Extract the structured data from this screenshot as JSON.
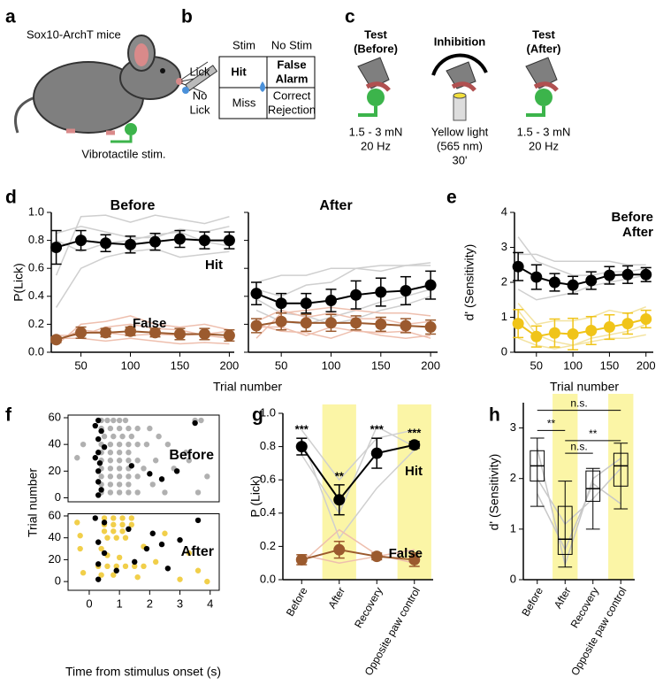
{
  "panel_labels": [
    "a",
    "b",
    "c",
    "d",
    "e",
    "f",
    "g",
    "h"
  ],
  "panel_a": {
    "title": "Sox10-ArchT mice",
    "caption": "Vibrotactile stim."
  },
  "panel_b": {
    "columns": [
      "Stim",
      "No Stim"
    ],
    "rows": [
      {
        "label": [
          "Lick"
        ],
        "cells": [
          [
            "Hit"
          ],
          [
            "False",
            "Alarm"
          ]
        ]
      },
      {
        "label": [
          "No",
          "Lick"
        ],
        "cells": [
          [
            "Miss"
          ],
          [
            "Correct",
            "Rejection"
          ]
        ]
      }
    ]
  },
  "panel_c": {
    "steps": [
      {
        "title": [
          "Test",
          "(Before)"
        ],
        "desc": [
          "1.5 - 3 mN",
          "20 Hz"
        ]
      },
      {
        "title": [
          "Inhibition"
        ],
        "desc": [
          "Yellow light",
          "(565 nm)",
          "30'"
        ]
      },
      {
        "title": [
          "Test",
          "(After)"
        ],
        "desc": [
          "1.5 - 3 mN",
          "20 Hz"
        ]
      }
    ]
  },
  "chart_data": [
    {
      "type": "line",
      "title": "Before",
      "ylabel": "P(Lick)",
      "x": [
        25,
        50,
        75,
        100,
        125,
        150,
        175,
        200
      ],
      "xlim": [
        20,
        205
      ],
      "xticks": [
        50,
        100,
        150,
        200
      ],
      "ylim": [
        0,
        1
      ],
      "yticks": [
        {
          "value": 0,
          "label": "0.0"
        },
        0.2,
        0.4,
        0.6,
        0.8,
        {
          "value": 1,
          "label": "1.0"
        }
      ],
      "traces": [
        {
          "color": "#cfcfcf",
          "values": [
            0.55,
            0.97,
            0.98,
            0.93,
            0.98,
            0.95,
            0.92,
            0.97
          ]
        },
        {
          "color": "#cfcfcf",
          "values": [
            0.32,
            0.6,
            0.68,
            0.72,
            0.74,
            0.68,
            0.7,
            0.72
          ]
        },
        {
          "color": "#cfcfcf",
          "values": [
            0.85,
            0.9,
            0.86,
            0.82,
            0.82,
            0.88,
            0.86,
            0.9
          ]
        },
        {
          "color": "#cfcfcf",
          "values": [
            0.8,
            0.72,
            0.78,
            0.8,
            0.84,
            0.86,
            0.79,
            0.76
          ]
        },
        {
          "color": "#eebfae",
          "values": [
            0.05,
            0.2,
            0.22,
            0.26,
            0.2,
            0.18,
            0.2,
            0.16
          ]
        },
        {
          "color": "#eebfae",
          "values": [
            0.1,
            0.1,
            0.08,
            0.1,
            0.08,
            0.06,
            0.07,
            0.06
          ]
        },
        {
          "color": "#eebfae",
          "values": [
            0.08,
            0.16,
            0.14,
            0.12,
            0.13,
            0.12,
            0.13,
            0.15
          ]
        },
        {
          "color": "#eebfae",
          "values": [
            0.12,
            0.12,
            0.18,
            0.2,
            0.17,
            0.16,
            0.12,
            0.1
          ]
        }
      ],
      "series": [
        {
          "name": "Hit",
          "color": "#000000",
          "values": [
            0.75,
            0.8,
            0.78,
            0.77,
            0.79,
            0.81,
            0.8,
            0.8
          ],
          "errors": [
            0.12,
            0.07,
            0.06,
            0.06,
            0.06,
            0.06,
            0.06,
            0.06
          ]
        },
        {
          "name": "False",
          "color": "#9b5a2e",
          "values": [
            0.09,
            0.14,
            0.14,
            0.15,
            0.14,
            0.13,
            0.13,
            0.12
          ],
          "errors": [
            0.02,
            0.04,
            0.03,
            0.03,
            0.03,
            0.04,
            0.04,
            0.04
          ]
        }
      ]
    },
    {
      "type": "line",
      "title": "After",
      "xlabel": "Trial number",
      "x": [
        25,
        50,
        75,
        100,
        125,
        150,
        175,
        200
      ],
      "xlim": [
        17,
        207
      ],
      "xticks": [
        50,
        100,
        150,
        200
      ],
      "ylim": [
        0,
        1
      ],
      "yticks": [
        0,
        0.2,
        0.4,
        0.6,
        0.8,
        1
      ],
      "ytick_labels": false,
      "traces": [
        {
          "color": "#cfcfcf",
          "values": [
            0.5,
            0.55,
            0.55,
            0.6,
            0.6,
            0.58,
            0.62,
            0.62
          ]
        },
        {
          "color": "#cfcfcf",
          "values": [
            0.3,
            0.22,
            0.2,
            0.25,
            0.3,
            0.36,
            0.4,
            0.45
          ]
        },
        {
          "color": "#cfcfcf",
          "values": [
            0.45,
            0.4,
            0.48,
            0.5,
            0.6,
            0.62,
            0.62,
            0.64
          ]
        },
        {
          "color": "#cfcfcf",
          "values": [
            0.38,
            0.28,
            0.26,
            0.2,
            0.24,
            0.3,
            0.34,
            0.4
          ]
        },
        {
          "color": "#eebfae",
          "values": [
            0.1,
            0.28,
            0.3,
            0.32,
            0.3,
            0.28,
            0.28,
            0.26
          ]
        },
        {
          "color": "#eebfae",
          "values": [
            0.2,
            0.15,
            0.14,
            0.1,
            0.16,
            0.12,
            0.1,
            0.12
          ]
        },
        {
          "color": "#eebfae",
          "values": [
            0.22,
            0.3,
            0.25,
            0.28,
            0.24,
            0.24,
            0.2,
            0.22
          ]
        },
        {
          "color": "#eebfae",
          "values": [
            0.18,
            0.18,
            0.12,
            0.18,
            0.15,
            0.14,
            0.15,
            0.1
          ]
        }
      ],
      "series": [
        {
          "color": "#000000",
          "values": [
            0.42,
            0.35,
            0.35,
            0.37,
            0.41,
            0.43,
            0.44,
            0.48
          ],
          "errors": [
            0.08,
            0.07,
            0.07,
            0.08,
            0.1,
            0.1,
            0.1,
            0.1
          ]
        },
        {
          "color": "#9b5a2e",
          "values": [
            0.19,
            0.22,
            0.21,
            0.21,
            0.21,
            0.2,
            0.19,
            0.18
          ],
          "errors": [
            0.05,
            0.06,
            0.06,
            0.06,
            0.05,
            0.05,
            0.05,
            0.05
          ]
        }
      ]
    },
    {
      "type": "line",
      "ylabel": "d' (Sensitivity)",
      "xlabel": "Trial number",
      "legend": "upper right",
      "x": [
        25,
        50,
        75,
        100,
        125,
        150,
        175,
        200
      ],
      "xlim": [
        20,
        210
      ],
      "xticks": [
        50,
        100,
        150,
        200
      ],
      "ylim": [
        0,
        4
      ],
      "yticks": [
        0,
        1,
        2,
        3,
        4
      ],
      "traces": [
        {
          "color": "#cfcfcf",
          "values": [
            3.3,
            2.6,
            2.4,
            2.2,
            2.2,
            2.3,
            2.3,
            2.4
          ]
        },
        {
          "color": "#cfcfcf",
          "values": [
            1.8,
            1.5,
            1.6,
            1.7,
            1.9,
            2,
            2.1,
            2.2
          ]
        },
        {
          "color": "#cfcfcf",
          "values": [
            2.8,
            2.8,
            2.6,
            2.6,
            2.6,
            2.6,
            2.5,
            2.5
          ]
        },
        {
          "color": "#f3e3a0",
          "values": [
            0.4,
            0.2,
            0.1,
            0.2,
            0.3,
            0.4,
            0.4,
            0.5
          ]
        },
        {
          "color": "#f3e3a0",
          "values": [
            1.4,
            0.8,
            0.9,
            0.9,
            1,
            1.2,
            1.1,
            1.3
          ]
        },
        {
          "color": "#f3e3a0",
          "values": [
            1.2,
            0.5,
            0.3,
            0.2,
            0.4,
            0.5,
            0.6,
            0.8
          ]
        }
      ],
      "series": [
        {
          "name": "Before",
          "color": "#000000",
          "values": [
            2.45,
            2.15,
            2,
            1.92,
            2.05,
            2.2,
            2.22,
            2.22
          ],
          "errors": [
            0.4,
            0.35,
            0.25,
            0.25,
            0.25,
            0.25,
            0.25,
            0.2
          ]
        },
        {
          "name": "After",
          "color": "#f0c419",
          "values": [
            0.82,
            0.45,
            0.55,
            0.52,
            0.62,
            0.72,
            0.82,
            0.95
          ],
          "errors": [
            0.4,
            0.3,
            0.4,
            0.45,
            0.4,
            0.35,
            0.3,
            0.25
          ]
        }
      ]
    },
    {
      "type": "scatter",
      "title": "Before",
      "xlim": [
        -0.7,
        4.3
      ],
      "ylim": [
        -3,
        62
      ],
      "yticks": [
        0,
        20,
        40,
        60
      ],
      "series": [
        {
          "color": "#b0b0b0",
          "x": [
            0.4,
            0.6,
            0.8,
            1,
            1.2,
            3.5,
            3.7,
            0.4,
            0.7,
            1,
            1.3,
            1.6,
            2,
            0.5,
            0.8,
            1.1,
            1.4,
            2.3,
            -0.2,
            0.4,
            0.7,
            1,
            1.3,
            1.6,
            1.9,
            2.6,
            0.4,
            0.7,
            1,
            1.3,
            3.2,
            -0.4,
            0.4,
            0.7,
            1,
            1.3,
            1.6,
            2.2,
            3.3,
            0.4,
            0.7,
            1,
            1.3,
            1.8,
            2.8,
            0.4,
            0.7,
            1,
            1.3,
            1.6,
            3.9,
            0.4,
            0.7,
            1,
            1.3,
            2.1,
            0.4,
            0.7,
            1,
            1.3,
            1.6,
            2.5,
            3.6
          ],
          "y": [
            58,
            58,
            58,
            58,
            58,
            58,
            58,
            52,
            52,
            52,
            52,
            52,
            52,
            46,
            46,
            46,
            46,
            46,
            40,
            40,
            40,
            40,
            40,
            40,
            40,
            40,
            34,
            34,
            34,
            34,
            34,
            30,
            28,
            28,
            28,
            28,
            28,
            28,
            28,
            22,
            22,
            22,
            22,
            22,
            22,
            16,
            16,
            16,
            16,
            16,
            16,
            10,
            10,
            10,
            10,
            10,
            4,
            4,
            4,
            4,
            4,
            4,
            4
          ]
        },
        {
          "color": "#000000",
          "x": [
            0.3,
            0.2,
            0.4,
            0.3,
            0.5,
            0.3,
            0.2,
            0.35,
            0.3,
            1.4,
            2,
            2.4,
            0.3,
            0.4,
            0.3,
            2.9,
            3.5
          ],
          "y": [
            58,
            54,
            50,
            44,
            38,
            34,
            30,
            26,
            20,
            24,
            18,
            14,
            12,
            6,
            2,
            20,
            56
          ]
        }
      ]
    },
    {
      "type": "scatter",
      "title": "After",
      "xlabel": "Time from stimulus onset (s)",
      "ylabel": "Trial number",
      "xlim": [
        -0.7,
        4.3
      ],
      "xticks": [
        0,
        1,
        2,
        3,
        4
      ],
      "ylim": [
        -8,
        62
      ],
      "yticks": [
        0,
        20,
        40,
        60
      ],
      "series": [
        {
          "color": "#f1cf4a",
          "x": [
            0.5,
            0.8,
            1.1,
            1.4,
            0.5,
            0.8,
            1.1,
            1.4,
            0.5,
            0.8,
            1.1,
            0.6,
            0.9,
            1.2,
            2.5,
            -0.3,
            -0.3,
            0.4,
            1.8,
            3.3,
            0.6,
            1,
            2.2,
            0.3,
            0.6,
            0.9,
            1.2,
            1.5,
            1.8,
            -0.2,
            0.4,
            0.8,
            1.6,
            3,
            3.9,
            3.6,
            -0.4
          ],
          "y": [
            58,
            58,
            58,
            58,
            52,
            52,
            52,
            52,
            46,
            46,
            46,
            40,
            40,
            40,
            44,
            42,
            30,
            30,
            32,
            26,
            24,
            22,
            18,
            14,
            14,
            14,
            14,
            14,
            14,
            8,
            6,
            6,
            4,
            2,
            0,
            10,
            54
          ]
        },
        {
          "color": "#000000",
          "x": [
            0.2,
            0.5,
            1.3,
            0.3,
            2.4,
            1.9,
            0.5,
            1.5,
            0.3,
            0.9,
            2.6,
            3,
            3.6,
            0.3,
            2.1
          ],
          "y": [
            58,
            54,
            48,
            36,
            34,
            30,
            26,
            18,
            16,
            10,
            12,
            38,
            56,
            2,
            44
          ]
        }
      ]
    },
    {
      "type": "line",
      "ylabel": "P (Lick)",
      "categories": [
        "Before",
        "After",
        "Recovery",
        "Opposite paw control"
      ],
      "highlight": [
        false,
        true,
        false,
        true
      ],
      "ylim": [
        0,
        1
      ],
      "yticks": [
        {
          "value": 0,
          "label": "0.0"
        },
        0.2,
        0.4,
        0.6,
        0.8,
        {
          "value": 1,
          "label": "1.0"
        }
      ],
      "traces": [
        {
          "color": "#cfcfcf",
          "values": [
            0.9,
            0.6,
            0.85,
            0.9
          ]
        },
        {
          "color": "#cfcfcf",
          "values": [
            0.85,
            0.25,
            0.55,
            0.78
          ]
        },
        {
          "color": "#cfcfcf",
          "values": [
            0.75,
            0.4,
            0.92,
            0.8
          ]
        },
        {
          "color": "#eebfae",
          "values": [
            0.1,
            0.3,
            0.15,
            0.1
          ]
        },
        {
          "color": "#eebfae",
          "values": [
            0.15,
            0.1,
            0.14,
            0.18
          ]
        }
      ],
      "series": [
        {
          "name": "Hit",
          "color": "#000000",
          "values": [
            0.8,
            0.48,
            0.76,
            0.81
          ],
          "errors": [
            0.05,
            0.09,
            0.09,
            0.02
          ],
          "annotations": [
            "***",
            "**",
            "***",
            "***"
          ]
        },
        {
          "name": "False",
          "color": "#9b5a2e",
          "values": [
            0.12,
            0.18,
            0.14,
            0.12
          ],
          "errors": [
            0.03,
            0.05,
            0.02,
            0.04
          ]
        }
      ]
    },
    {
      "type": "box",
      "ylabel": "d' (Sensitivity)",
      "categories": [
        "Before",
        "After",
        "Recovery",
        "Opposite paw control"
      ],
      "highlight": [
        false,
        true,
        false,
        true
      ],
      "ylim": [
        0,
        3.5
      ],
      "yticks": [
        0,
        1,
        2,
        3
      ],
      "traces": [
        {
          "color": "#c8c8c8",
          "values": [
            2.6,
            0.3,
            2,
            2.4
          ]
        },
        {
          "color": "#c8c8c8",
          "values": [
            2,
            1.1,
            1.6,
            2.2
          ]
        },
        {
          "color": "#c8c8c8",
          "values": [
            1.7,
            0.6,
            1.9,
            1.5
          ]
        }
      ],
      "boxes": [
        {
          "min": 1.45,
          "q1": 1.95,
          "median": 2.25,
          "q3": 2.55,
          "max": 2.8
        },
        {
          "min": 0.25,
          "q1": 0.5,
          "median": 0.8,
          "q3": 1.45,
          "max": 1.95
        },
        {
          "min": 1,
          "q1": 1.55,
          "median": 1.8,
          "q3": 2.15,
          "max": 2.2
        },
        {
          "min": 1.4,
          "q1": 1.85,
          "median": 2.25,
          "q3": 2.5,
          "max": 2.7
        }
      ],
      "comparisons": [
        {
          "from": 0,
          "to": 1,
          "y": 2.95,
          "label": "**"
        },
        {
          "from": 0,
          "to": 3,
          "y": 3.35,
          "label": "n.s."
        },
        {
          "from": 1,
          "to": 2,
          "y": 2.5,
          "label": "n.s."
        },
        {
          "from": 1,
          "to": 3,
          "y": 2.75,
          "label": "**"
        }
      ]
    }
  ]
}
